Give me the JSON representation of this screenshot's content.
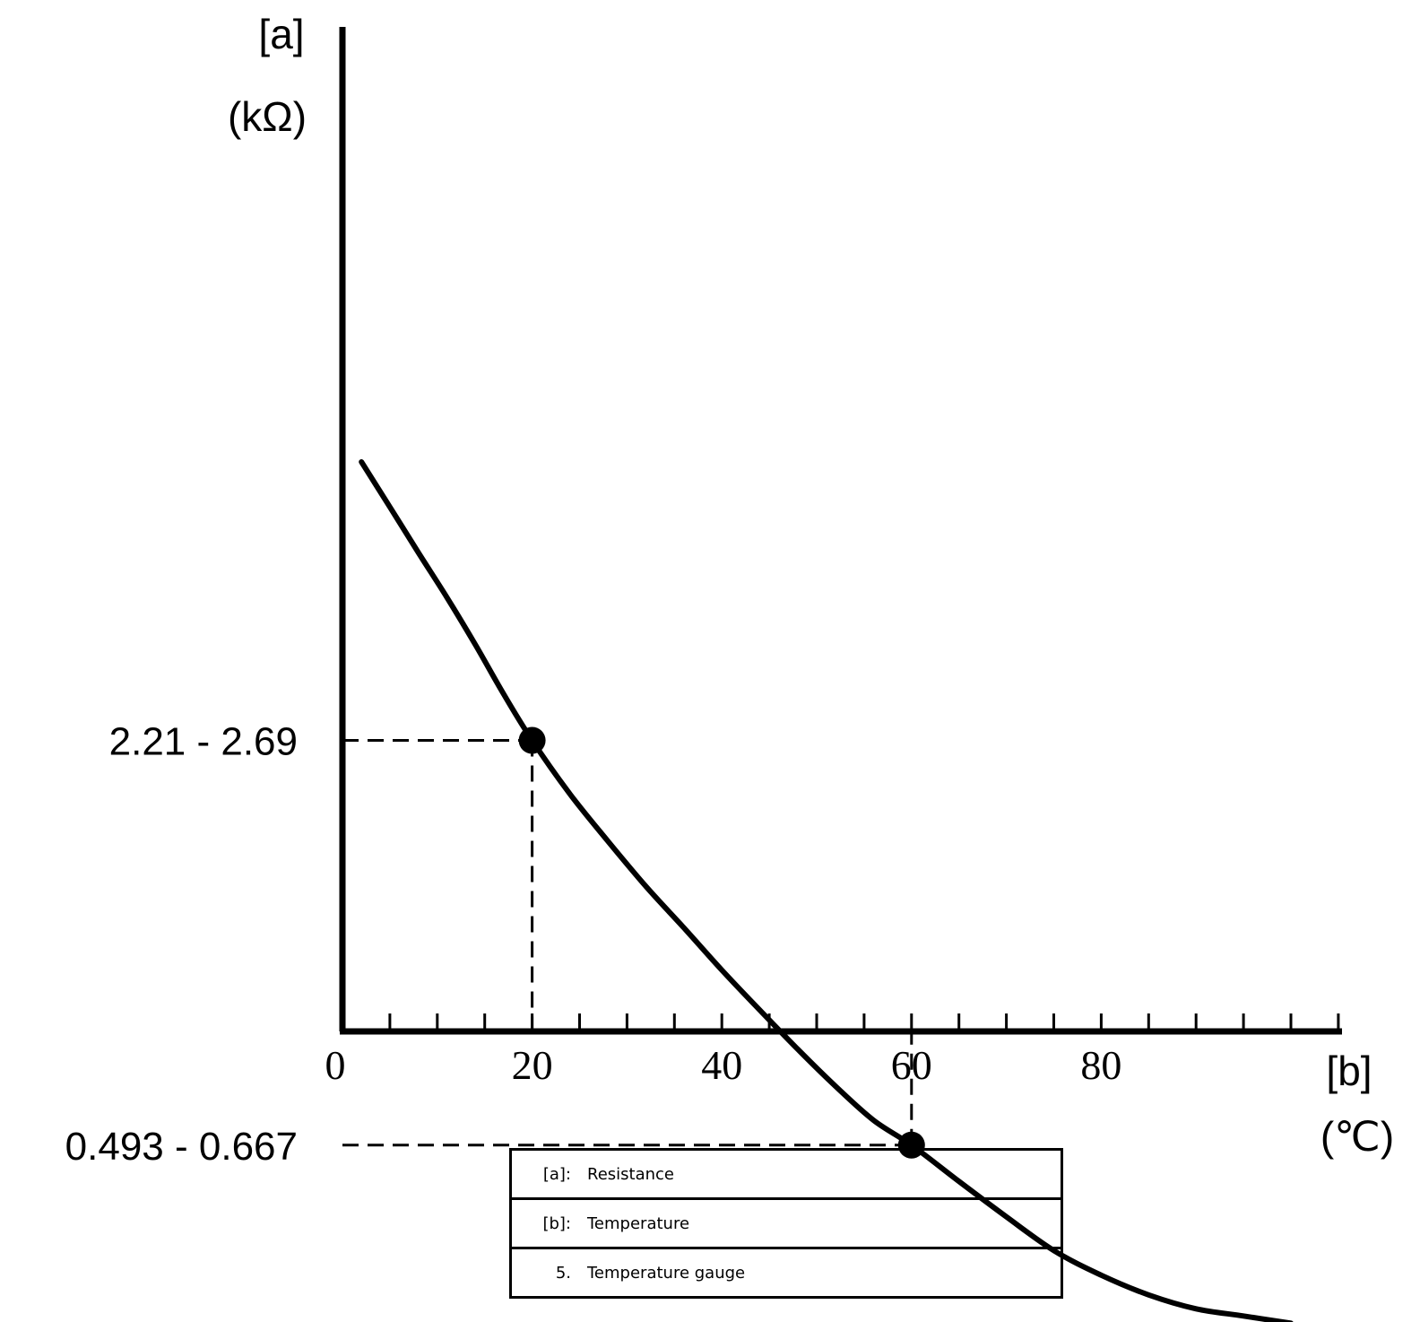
{
  "chart_data": {
    "type": "line",
    "y_axis": {
      "label": "[a]",
      "unit": "(kΩ)"
    },
    "x_axis": {
      "label": "[b]",
      "unit": "(℃)"
    },
    "xlim": [
      0,
      105
    ],
    "x_ticks": [
      0,
      20,
      40,
      60,
      80
    ],
    "x_minor_step": 5,
    "y_ticks": [
      "2.21 - 2.69",
      "0.493 - 0.667"
    ],
    "series": [
      {
        "x": [
          2,
          5,
          8,
          11,
          14,
          17,
          20,
          24,
          28,
          32,
          36,
          40,
          44,
          48,
          52,
          56,
          60,
          65,
          70,
          75,
          80,
          85,
          90,
          95,
          100
        ],
        "y": [
          6.0,
          5.2,
          4.5,
          3.9,
          3.35,
          2.85,
          2.45,
          2.05,
          1.75,
          1.5,
          1.3,
          1.12,
          0.97,
          0.84,
          0.73,
          0.64,
          0.58,
          0.5,
          0.43,
          0.37,
          0.33,
          0.3,
          0.28,
          0.27,
          0.26
        ]
      }
    ],
    "markers": [
      {
        "x": 20,
        "y": 2.45,
        "y_label": "2.21 - 2.69"
      },
      {
        "x": 60,
        "y": 0.58,
        "y_label": "0.493 - 0.667"
      }
    ],
    "grid": false,
    "legend": [
      {
        "key": "[a]:",
        "text": "Resistance"
      },
      {
        "key": "[b]:",
        "text": "Temperature"
      },
      {
        "key": "5.",
        "text": "Temperature gauge"
      }
    ],
    "legend_position": "bottom-center"
  }
}
